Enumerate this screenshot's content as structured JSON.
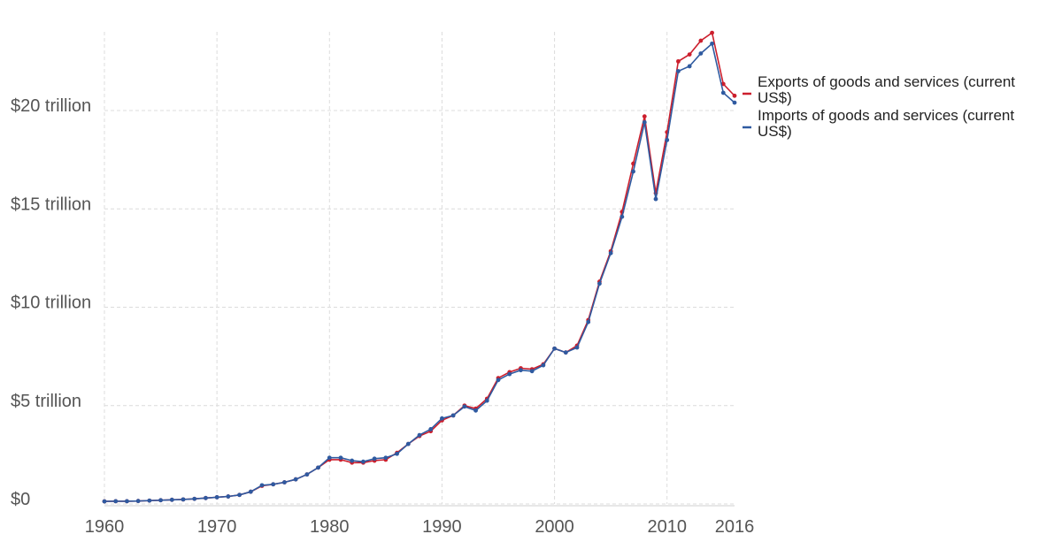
{
  "chart_data": {
    "type": "line",
    "title": "",
    "xlabel": "",
    "ylabel": "",
    "xlim": [
      1960,
      2016
    ],
    "ylim": [
      0,
      24
    ],
    "grid": true,
    "legend_position": "right",
    "x_ticks": [
      {
        "value": 1960,
        "label": "1960"
      },
      {
        "value": 1970,
        "label": "1970"
      },
      {
        "value": 1980,
        "label": "1980"
      },
      {
        "value": 1990,
        "label": "1990"
      },
      {
        "value": 2000,
        "label": "2000"
      },
      {
        "value": 2010,
        "label": "2010"
      },
      {
        "value": 2016,
        "label": "2016"
      }
    ],
    "y_ticks": [
      {
        "value": 0,
        "label": "$0"
      },
      {
        "value": 5,
        "label": "$5 trillion"
      },
      {
        "value": 10,
        "label": "$10 trillion"
      },
      {
        "value": 15,
        "label": "$15 trillion"
      },
      {
        "value": 20,
        "label": "$20 trillion"
      }
    ],
    "x": [
      1960,
      1961,
      1962,
      1963,
      1964,
      1965,
      1966,
      1967,
      1968,
      1969,
      1970,
      1971,
      1972,
      1973,
      1974,
      1975,
      1976,
      1977,
      1978,
      1979,
      1980,
      1981,
      1982,
      1983,
      1984,
      1985,
      1986,
      1987,
      1988,
      1989,
      1990,
      1991,
      1992,
      1993,
      1994,
      1995,
      1996,
      1997,
      1998,
      1999,
      2000,
      2001,
      2002,
      2003,
      2004,
      2005,
      2006,
      2007,
      2008,
      2009,
      2010,
      2011,
      2012,
      2013,
      2014,
      2015,
      2016
    ],
    "series": [
      {
        "name": "Exports of goods and services (current US$)",
        "color": "#cc1f2d",
        "values": [
          0.13,
          0.14,
          0.14,
          0.15,
          0.17,
          0.19,
          0.21,
          0.23,
          0.26,
          0.3,
          0.34,
          0.38,
          0.46,
          0.62,
          0.92,
          1.0,
          1.1,
          1.25,
          1.5,
          1.85,
          2.25,
          2.25,
          2.1,
          2.1,
          2.2,
          2.25,
          2.6,
          3.05,
          3.45,
          3.7,
          4.25,
          4.5,
          5.0,
          4.85,
          5.35,
          6.4,
          6.7,
          6.9,
          6.85,
          7.1,
          7.9,
          7.7,
          8.05,
          9.35,
          11.3,
          12.85,
          14.85,
          17.3,
          19.7,
          15.8,
          18.9,
          22.5,
          22.85,
          23.55,
          23.95,
          21.35,
          20.75
        ]
      },
      {
        "name": "Imports of goods and services (current US$)",
        "color": "#2f5aa0",
        "values": [
          0.13,
          0.14,
          0.14,
          0.15,
          0.17,
          0.19,
          0.21,
          0.23,
          0.26,
          0.3,
          0.34,
          0.38,
          0.46,
          0.62,
          0.95,
          1.0,
          1.1,
          1.25,
          1.5,
          1.85,
          2.35,
          2.35,
          2.2,
          2.15,
          2.3,
          2.35,
          2.55,
          3.05,
          3.5,
          3.8,
          4.35,
          4.5,
          4.95,
          4.75,
          5.25,
          6.3,
          6.6,
          6.8,
          6.75,
          7.05,
          7.9,
          7.7,
          7.95,
          9.25,
          11.2,
          12.75,
          14.6,
          16.9,
          19.4,
          15.5,
          18.5,
          22.0,
          22.25,
          22.9,
          23.4,
          20.9,
          20.4
        ]
      }
    ]
  }
}
